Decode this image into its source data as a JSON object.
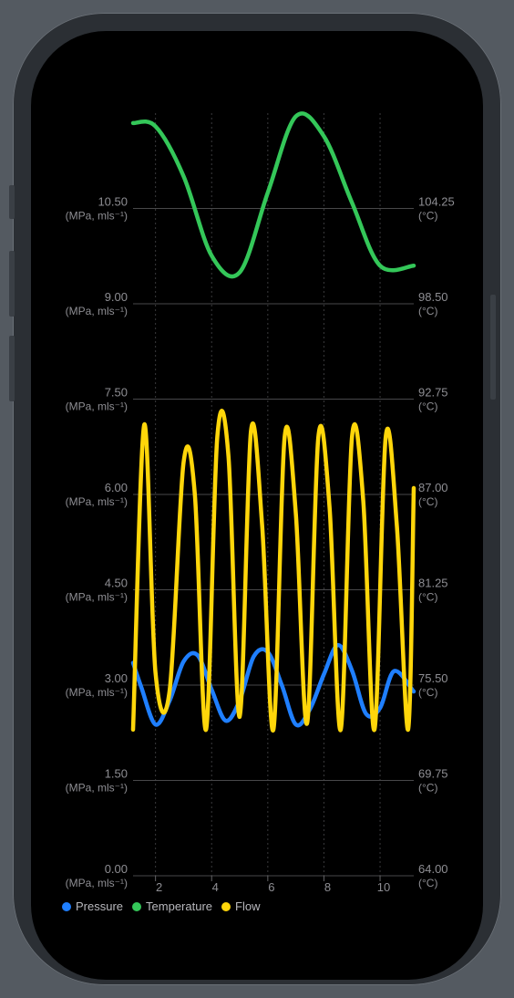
{
  "chart_data": {
    "type": "line",
    "x_ticks": [
      "2",
      "4",
      "6",
      "8",
      "10"
    ],
    "xlim": [
      1.2,
      11.2
    ],
    "left_axis": {
      "ticks": [
        "0.00",
        "1.50",
        "3.00",
        "4.50",
        "6.00",
        "7.50",
        "9.00",
        "10.50"
      ],
      "unit": "(MPa, mls⁻¹)",
      "ylim": [
        0,
        12
      ]
    },
    "right_axis": {
      "ticks": [
        "64.00",
        "69.75",
        "75.50",
        "81.25",
        "87.00",
        "92.75",
        "98.50",
        "104.25"
      ],
      "unit": "(°C)",
      "ylim": [
        64,
        110
      ]
    },
    "gridlines": "horizontal solid, vertical dotted",
    "legend_position": "bottom-left",
    "series": [
      {
        "name": "Pressure",
        "axis": "left",
        "color": "#1f7fff",
        "x": [
          1.2,
          1.5,
          2.0,
          2.5,
          3.0,
          3.5,
          4.0,
          4.5,
          5.0,
          5.5,
          6.0,
          6.5,
          7.0,
          7.5,
          8.0,
          8.5,
          9.0,
          9.5,
          10.0,
          10.5,
          11.2
        ],
        "values": [
          3.35,
          2.96,
          2.38,
          2.75,
          3.37,
          3.47,
          2.93,
          2.44,
          2.76,
          3.45,
          3.52,
          3.0,
          2.38,
          2.62,
          3.17,
          3.63,
          3.23,
          2.55,
          2.64,
          3.22,
          2.9
        ]
      },
      {
        "name": "Temperature",
        "axis": "right",
        "color": "#34c759",
        "x": [
          1.2,
          2.0,
          3.0,
          4.0,
          5.0,
          6.0,
          7.0,
          8.0,
          9.0,
          10.0,
          11.2
        ],
        "values": [
          109.4,
          109.2,
          106.2,
          101.4,
          100.4,
          105.2,
          109.8,
          108.6,
          104.6,
          100.8,
          100.8
        ]
      },
      {
        "name": "Flow",
        "axis": "left",
        "color": "#ffd60a",
        "x": [
          1.2,
          1.6,
          2.0,
          2.5,
          3.0,
          3.4,
          3.8,
          4.2,
          4.6,
          5.0,
          5.4,
          5.8,
          6.2,
          6.6,
          7.0,
          7.4,
          7.8,
          8.2,
          8.6,
          9.0,
          9.4,
          9.8,
          10.2,
          10.6,
          11.0,
          11.2
        ],
        "values": [
          2.3,
          7.1,
          3.2,
          2.9,
          6.5,
          6.0,
          2.3,
          6.9,
          6.6,
          2.5,
          7.0,
          5.5,
          2.3,
          6.9,
          5.7,
          2.4,
          6.9,
          5.8,
          2.3,
          6.9,
          5.9,
          2.3,
          6.9,
          5.5,
          2.3,
          6.1
        ]
      }
    ]
  }
}
